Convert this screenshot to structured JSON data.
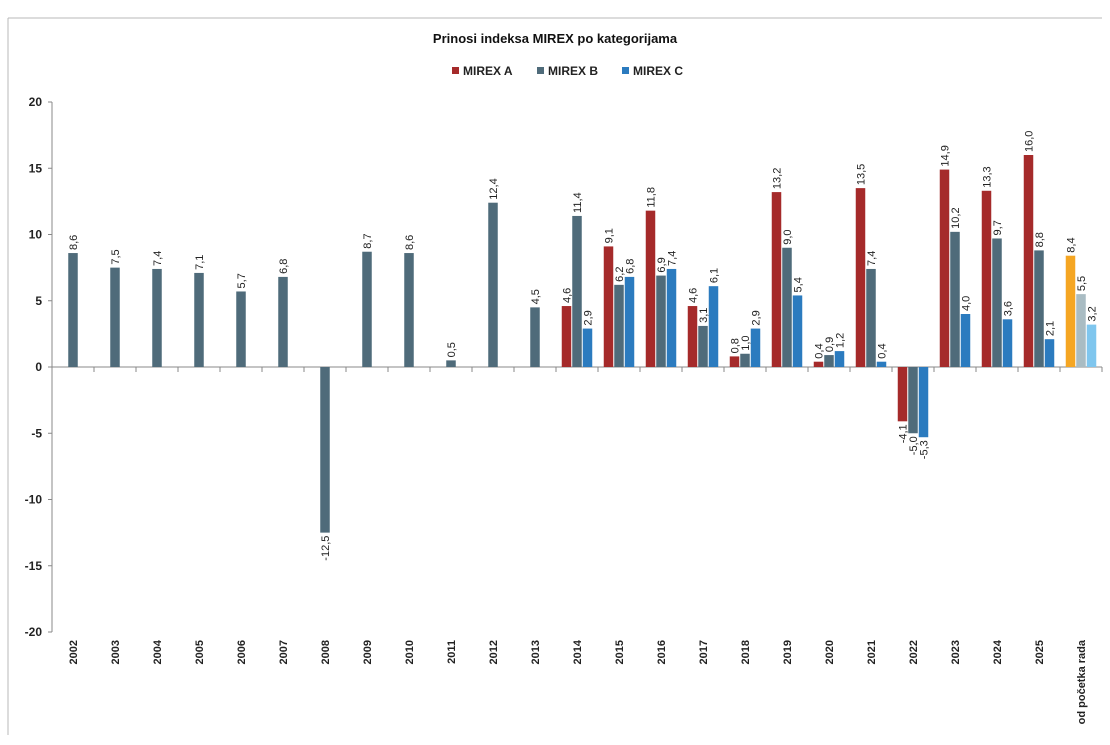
{
  "chart_data": {
    "type": "bar",
    "title": "Prinosi indeksa MIREX po kategorijama",
    "xlabel": "",
    "ylabel": "",
    "ylim": [
      -20,
      20
    ],
    "yticks": [
      20,
      15,
      10,
      5,
      0,
      -5,
      -10,
      -15,
      -20
    ],
    "legend_position": "top-center",
    "grid": false,
    "categories": [
      "2002",
      "2003",
      "2004",
      "2005",
      "2006",
      "2007",
      "2008",
      "2009",
      "2010",
      "2011",
      "2012",
      "2013",
      "2014",
      "2015",
      "2016",
      "2017",
      "2018",
      "2019",
      "2020",
      "2021",
      "2022",
      "2023",
      "2024",
      "2025",
      "od početka rada"
    ],
    "series": [
      {
        "name": "MIREX A",
        "color": "#a52a2a",
        "values": [
          null,
          null,
          null,
          null,
          null,
          null,
          null,
          null,
          null,
          null,
          null,
          null,
          4.6,
          9.1,
          11.8,
          4.6,
          0.8,
          13.2,
          0.4,
          13.5,
          -4.1,
          14.9,
          13.3,
          16.0,
          8.4
        ],
        "labels": [
          "",
          "",
          "",
          "",
          "",
          "",
          "",
          "",
          "",
          "",
          "",
          "",
          "4,6",
          "9,1",
          "11,8",
          "4,6",
          "0,8",
          "13,2",
          "0,4",
          "13,5",
          "-4,1",
          "14,9",
          "13,3",
          "16,0",
          "8,4"
        ]
      },
      {
        "name": "MIREX B",
        "color": "#4f6b7a",
        "values": [
          8.6,
          7.5,
          7.4,
          7.1,
          5.7,
          6.8,
          -12.5,
          8.7,
          8.6,
          0.5,
          12.4,
          4.5,
          11.4,
          6.2,
          6.9,
          3.1,
          1.0,
          9.0,
          0.9,
          7.4,
          -5.0,
          10.2,
          9.7,
          8.8,
          5.5
        ],
        "labels": [
          "8,6",
          "7,5",
          "7,4",
          "7,1",
          "5,7",
          "6,8",
          "-12,5",
          "8,7",
          "8,6",
          "0,5",
          "12,4",
          "4,5",
          "11,4",
          "6,2",
          "6,9",
          "3,1",
          "1,0",
          "9,0",
          "0,9",
          "7,4",
          "-5,0",
          "10,2",
          "9,7",
          "8,8",
          "5,5"
        ]
      },
      {
        "name": "MIREX C",
        "color": "#2b7bbf",
        "values": [
          null,
          null,
          null,
          null,
          null,
          null,
          null,
          null,
          null,
          null,
          null,
          null,
          2.9,
          6.8,
          7.4,
          6.1,
          2.9,
          5.4,
          1.2,
          0.4,
          -5.3,
          4.0,
          3.6,
          2.1,
          3.2
        ],
        "labels": [
          "",
          "",
          "",
          "",
          "",
          "",
          "",
          "",
          "",
          "",
          "",
          "",
          "2,9",
          "6,8",
          "7,4",
          "6,1",
          "2,9",
          "5,4",
          "1,2",
          "0,4",
          "-5,3",
          "4,0",
          "3,6",
          "2,1",
          "3,2"
        ]
      }
    ],
    "last_category_colors": [
      "#f5a623",
      "#a9bcc3",
      "#7fc6ee"
    ]
  }
}
